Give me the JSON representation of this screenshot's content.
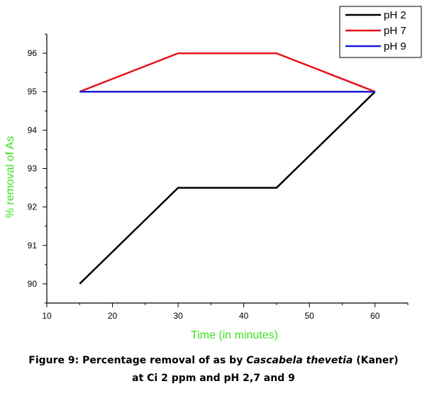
{
  "chart_data": {
    "type": "line",
    "title": "",
    "xlabel": "Time (in minutes)",
    "ylabel": "% removal of As",
    "xlim": [
      10,
      65
    ],
    "ylim": [
      89.5,
      96.5
    ],
    "xticks": [
      10,
      20,
      30,
      40,
      50,
      60
    ],
    "yticks": [
      90,
      91,
      92,
      93,
      94,
      95,
      96
    ],
    "legend_position": "top-right",
    "x": [
      15,
      30,
      45,
      60
    ],
    "series": [
      {
        "name": "pH 2",
        "color": "#000000",
        "values": [
          90,
          92.5,
          92.5,
          95
        ]
      },
      {
        "name": "pH 7",
        "color": "#e8111a",
        "values": [
          95,
          96,
          96,
          95
        ]
      },
      {
        "name": "pH 9",
        "color": "#1a1adc",
        "values": [
          95,
          95,
          95,
          95
        ]
      }
    ],
    "axis_label_color": "#3ce11e"
  },
  "caption": {
    "line1_prefix": "Figure 9: Percentage removal of as by ",
    "line1_italic": "Cascabela thevetia",
    "line1_suffix": " (Kaner)",
    "line2": "at Ci 2 ppm and pH 2,7 and 9"
  }
}
